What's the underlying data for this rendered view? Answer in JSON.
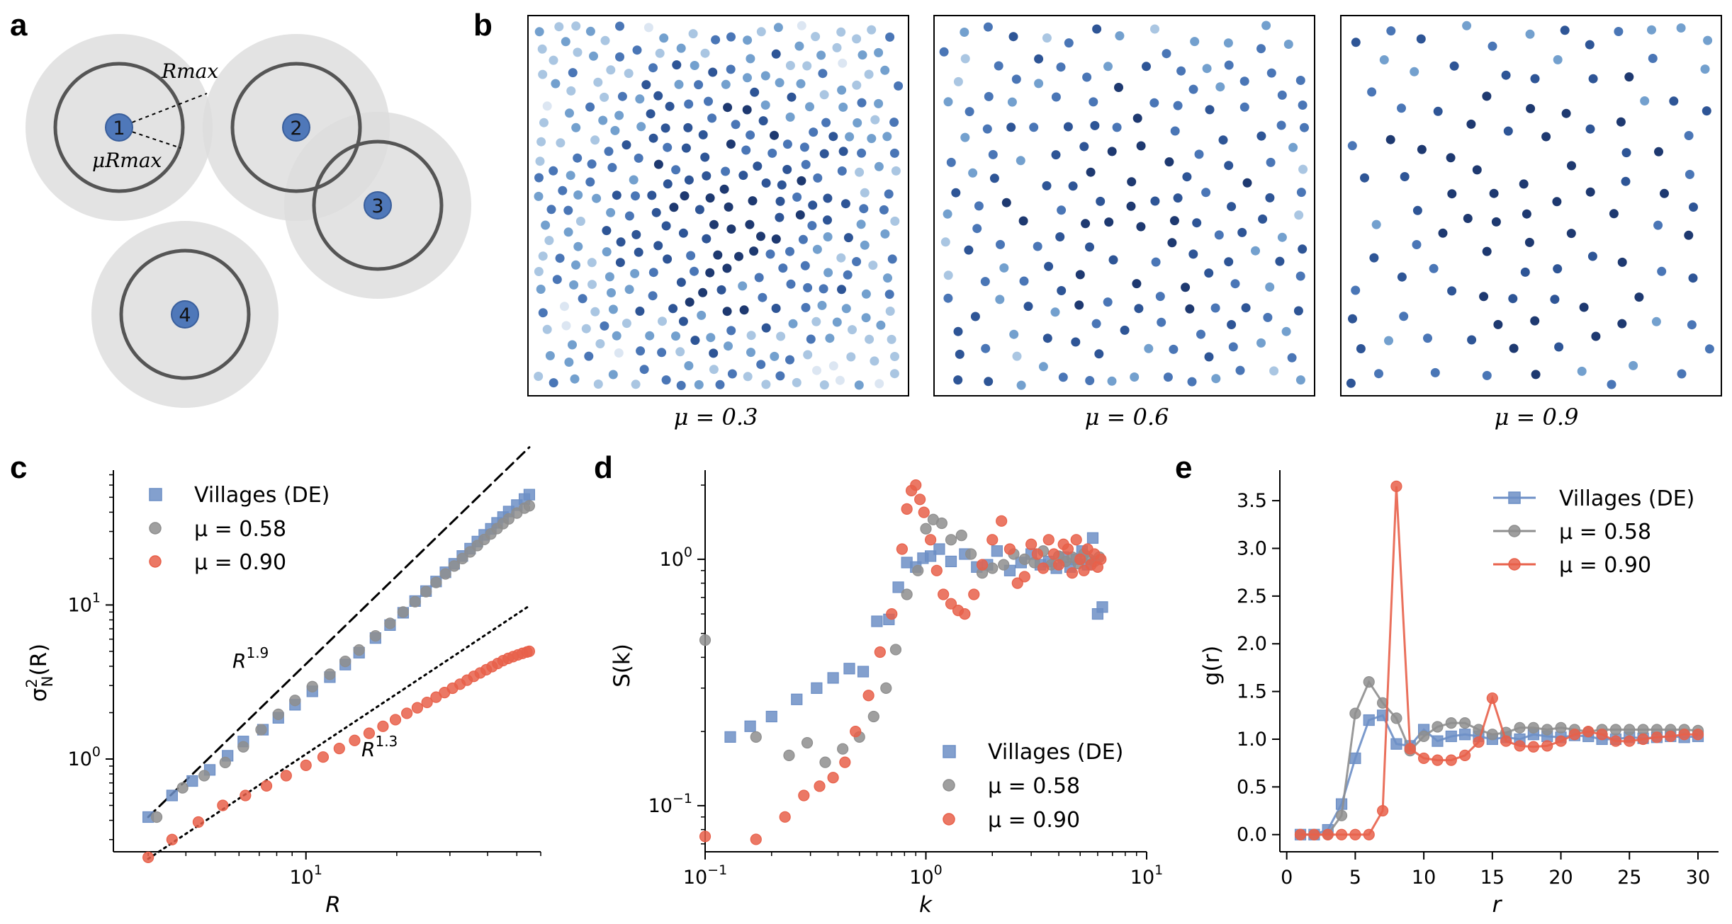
{
  "colors": {
    "villages": "#6d8fc6",
    "mu058": "#8e8e8e",
    "mu090": "#e8604a",
    "disc": "#4f78b9",
    "discEdge": "#3a5f9c",
    "ring": "#555555",
    "halo": "#dcdcdc"
  },
  "panel_letters": {
    "a": "a",
    "b": "b",
    "c": "c",
    "d": "d",
    "e": "e"
  },
  "panel_a": {
    "labels": {
      "rmax": "Rmax",
      "murmax": "μRmax"
    },
    "nodes": [
      {
        "label": "1"
      },
      {
        "label": "2"
      },
      {
        "label": "3"
      },
      {
        "label": "4"
      }
    ]
  },
  "panel_b": {
    "captions": [
      "μ = 0.3",
      "μ = 0.6",
      "μ = 0.9"
    ],
    "mu": [
      0.3,
      0.6,
      0.9
    ],
    "point_counts": [
      620,
      300,
      170
    ]
  },
  "chart_data": [
    {
      "panel": "c",
      "type": "scatter",
      "scale": "log-log",
      "xlabel": "R",
      "ylabel_base": "σ",
      "ylabel_sup": "2",
      "ylabel_sub": "N",
      "ylabel_arg": "(R)",
      "xlim": [
        2.3,
        60
      ],
      "ylim": [
        0.25,
        75
      ],
      "xticks": [
        {
          "v": 10,
          "base": "10",
          "exp": "1"
        }
      ],
      "yticks": [
        {
          "v": 1,
          "base": "10",
          "exp": "0"
        },
        {
          "v": 10,
          "base": "10",
          "exp": "1"
        }
      ],
      "fits": [
        {
          "name": "R^1.9",
          "base": "R",
          "exp": "1.9",
          "slope": 1.9,
          "anchor": [
            3,
            0.42
          ],
          "range": [
            3,
            55
          ],
          "style": "dashed"
        },
        {
          "name": "R^1.3",
          "base": "R",
          "exp": "1.3",
          "slope": 1.3,
          "anchor": [
            3,
            0.225
          ],
          "range": [
            3,
            55
          ],
          "style": "dotted"
        }
      ],
      "series": [
        {
          "name": "Villages (DE)",
          "marker": "square",
          "color_key": "villages",
          "x": [
            3,
            3.6,
            4.2,
            4.8,
            5.5,
            6.2,
            7.2,
            8.1,
            9.2,
            10.5,
            12,
            13.5,
            15,
            17,
            19,
            21,
            23,
            25,
            27,
            29,
            31,
            33,
            35,
            37,
            39,
            41,
            43,
            45,
            47,
            50,
            53,
            55
          ],
          "y": [
            0.42,
            0.58,
            0.72,
            0.85,
            1.05,
            1.3,
            1.55,
            1.85,
            2.25,
            2.75,
            3.4,
            4.1,
            4.9,
            6.1,
            7.4,
            8.9,
            10.6,
            12.3,
            14.2,
            16.3,
            18.5,
            20.8,
            23.2,
            25.8,
            28.5,
            31.2,
            34.1,
            37.2,
            40.4,
            44.5,
            48.7,
            52
          ]
        },
        {
          "name": "μ = 0.58",
          "marker": "circle",
          "color_key": "mu058",
          "x": [
            3.2,
            3.9,
            4.6,
            5.4,
            6.2,
            7.1,
            8.1,
            9.2,
            10.5,
            12,
            13.5,
            15,
            17,
            19,
            21,
            23,
            25,
            27,
            29,
            31,
            33,
            35,
            37,
            39,
            41,
            43,
            45,
            47,
            50,
            53,
            55
          ],
          "y": [
            0.42,
            0.65,
            0.78,
            0.95,
            1.2,
            1.55,
            1.95,
            2.4,
            2.95,
            3.55,
            4.3,
            5.1,
            6.3,
            7.6,
            9.0,
            10.5,
            12.2,
            14.0,
            15.9,
            17.9,
            20.0,
            22.1,
            24.3,
            26.6,
            28.9,
            31.3,
            33.7,
            36.2,
            39.5,
            42.5,
            44
          ]
        },
        {
          "name": "μ = 0.90",
          "marker": "circle",
          "color_key": "mu090",
          "x": [
            3,
            3.6,
            4.4,
            5.3,
            6.3,
            7.4,
            8.6,
            10,
            11.4,
            12.9,
            14.5,
            16.2,
            18,
            19.8,
            21.6,
            23.4,
            25.2,
            27,
            28.8,
            30.6,
            32.4,
            34.2,
            36,
            37.8,
            39.6,
            41.4,
            43.2,
            45,
            46.8,
            48.6,
            50.4,
            52.2,
            54,
            55
          ],
          "y": [
            0.23,
            0.3,
            0.39,
            0.5,
            0.58,
            0.67,
            0.78,
            0.91,
            1.03,
            1.17,
            1.32,
            1.47,
            1.63,
            1.8,
            1.98,
            2.15,
            2.33,
            2.52,
            2.7,
            2.88,
            3.06,
            3.25,
            3.44,
            3.62,
            3.8,
            3.98,
            4.17,
            4.35,
            4.5,
            4.62,
            4.74,
            4.85,
            4.95,
            5.0
          ]
        }
      ]
    },
    {
      "panel": "d",
      "type": "scatter",
      "scale": "log-log",
      "xlabel": "k",
      "ylabel": "S(k)",
      "xlim": [
        0.1,
        10
      ],
      "ylim": [
        0.065,
        2.3
      ],
      "xticks": [
        {
          "v": 0.1,
          "base": "10",
          "exp": "−1"
        },
        {
          "v": 1,
          "base": "10",
          "exp": "0"
        },
        {
          "v": 10,
          "base": "10",
          "exp": "1"
        }
      ],
      "yticks": [
        {
          "v": 0.1,
          "base": "10",
          "exp": "−1"
        },
        {
          "v": 1,
          "base": "10",
          "exp": "0"
        }
      ],
      "series": [
        {
          "name": "Villages (DE)",
          "marker": "square",
          "color_key": "villages",
          "x": [
            0.13,
            0.16,
            0.2,
            0.26,
            0.32,
            0.38,
            0.45,
            0.52,
            0.6,
            0.68,
            0.75,
            0.82,
            0.9,
            0.97,
            1.05,
            1.15,
            1.3,
            1.5,
            1.7,
            1.9,
            2.1,
            2.4,
            2.7,
            3,
            3.3,
            3.6,
            3.9,
            4.2,
            4.5,
            4.8,
            5.1,
            5.4,
            5.7,
            6,
            6.3
          ],
          "y": [
            0.19,
            0.21,
            0.23,
            0.27,
            0.3,
            0.33,
            0.36,
            0.35,
            0.56,
            0.57,
            0.77,
            0.97,
            0.93,
            1.01,
            1.03,
            1.1,
            0.98,
            1.05,
            0.93,
            0.95,
            1.08,
            0.9,
            0.97,
            1.05,
            0.95,
            0.98,
            0.92,
            1.02,
            0.93,
            1.0,
            1.08,
            0.95,
            1.22,
            0.6,
            0.64
          ]
        },
        {
          "name": "μ = 0.58",
          "marker": "circle",
          "color_key": "mu058",
          "x": [
            0.1,
            0.17,
            0.24,
            0.29,
            0.35,
            0.42,
            0.5,
            0.58,
            0.66,
            0.73,
            0.82,
            0.92,
            1.0,
            1.08,
            1.18,
            1.3,
            1.45,
            1.6,
            1.8,
            2.0,
            2.25,
            2.5,
            2.8,
            3.1,
            3.4,
            3.7,
            4.0,
            4.3,
            4.6,
            4.9,
            5.2,
            5.5,
            5.8,
            6.1
          ],
          "y": [
            0.47,
            0.19,
            0.16,
            0.18,
            0.15,
            0.17,
            0.19,
            0.23,
            0.3,
            0.43,
            0.72,
            0.9,
            1.33,
            1.45,
            1.4,
            1.2,
            1.25,
            1.05,
            0.88,
            0.92,
            0.95,
            1.05,
            1.0,
            0.97,
            1.08,
            0.95,
            1.03,
            0.98,
            1.02,
            0.96,
            1.05,
            1.0,
            0.98,
            1.02
          ]
        },
        {
          "name": "μ = 0.90",
          "marker": "circle",
          "color_key": "mu090",
          "x": [
            0.1,
            0.17,
            0.23,
            0.28,
            0.33,
            0.38,
            0.43,
            0.48,
            0.55,
            0.62,
            0.7,
            0.78,
            0.82,
            0.86,
            0.9,
            0.94,
            0.98,
            1.05,
            1.12,
            1.2,
            1.3,
            1.4,
            1.5,
            1.65,
            1.8,
            2.0,
            2.2,
            2.4,
            2.6,
            2.8,
            3.0,
            3.2,
            3.4,
            3.6,
            3.8,
            4.0,
            4.2,
            4.4,
            4.6,
            4.8,
            5.0,
            5.2,
            5.4,
            5.6,
            5.8,
            6.0,
            6.2
          ],
          "y": [
            0.075,
            0.073,
            0.09,
            0.11,
            0.12,
            0.13,
            0.15,
            0.2,
            0.28,
            0.42,
            0.6,
            1.1,
            1.6,
            1.9,
            2.0,
            1.75,
            1.55,
            1.2,
            0.9,
            0.72,
            0.66,
            0.62,
            0.6,
            0.72,
            0.95,
            1.2,
            1.43,
            1.1,
            0.8,
            0.85,
            1.15,
            1.05,
            0.92,
            1.2,
            1.05,
            0.95,
            1.15,
            1.1,
            0.88,
            1.2,
            1.0,
            0.9,
            1.1,
            0.95,
            1.05,
            0.93,
            1.0
          ]
        }
      ]
    },
    {
      "panel": "e",
      "type": "line",
      "scale": "linear",
      "xlabel": "r",
      "ylabel": "g(r)",
      "xlim": [
        -0.5,
        31.5
      ],
      "ylim": [
        -0.18,
        3.82
      ],
      "xticks": [
        {
          "v": 0,
          "label": "0"
        },
        {
          "v": 5,
          "label": "5"
        },
        {
          "v": 10,
          "label": "10"
        },
        {
          "v": 15,
          "label": "15"
        },
        {
          "v": 20,
          "label": "20"
        },
        {
          "v": 25,
          "label": "25"
        },
        {
          "v": 30,
          "label": "30"
        }
      ],
      "yticks": [
        {
          "v": 0,
          "label": "0.0"
        },
        {
          "v": 0.5,
          "label": "0.5"
        },
        {
          "v": 1.0,
          "label": "1.0"
        },
        {
          "v": 1.5,
          "label": "1.5"
        },
        {
          "v": 2.0,
          "label": "2.0"
        },
        {
          "v": 2.5,
          "label": "2.5"
        },
        {
          "v": 3.0,
          "label": "3.0"
        },
        {
          "v": 3.5,
          "label": "3.5"
        }
      ],
      "series": [
        {
          "name": "Villages (DE)",
          "marker": "square",
          "color_key": "villages",
          "x": [
            1,
            2,
            3,
            4,
            5,
            6,
            7,
            8,
            9,
            10,
            11,
            12,
            13,
            14,
            15,
            16,
            17,
            18,
            19,
            20,
            21,
            22,
            23,
            24,
            25,
            26,
            27,
            28,
            29,
            30
          ],
          "y": [
            0,
            0,
            0.05,
            0.32,
            0.8,
            1.2,
            1.25,
            0.95,
            0.93,
            1.1,
            0.98,
            1.03,
            1.05,
            1.03,
            1.0,
            1.02,
            1.0,
            1.05,
            1.03,
            1.02,
            1.04,
            1.03,
            1.0,
            1.0,
            1.02,
            1.01,
            1.02,
            1.03,
            1.02,
            1.03
          ]
        },
        {
          "name": "μ = 0.58",
          "marker": "circle",
          "color_key": "mu058",
          "x": [
            1,
            2,
            3,
            4,
            5,
            6,
            7,
            8,
            9,
            10,
            11,
            12,
            13,
            14,
            15,
            16,
            17,
            18,
            19,
            20,
            21,
            22,
            23,
            24,
            25,
            26,
            27,
            28,
            29,
            30
          ],
          "y": [
            0,
            0,
            0,
            0.2,
            1.27,
            1.6,
            1.38,
            1.22,
            0.88,
            1.03,
            1.13,
            1.17,
            1.17,
            1.1,
            1.05,
            1.07,
            1.12,
            1.12,
            1.1,
            1.12,
            1.1,
            1.08,
            1.1,
            1.1,
            1.1,
            1.1,
            1.1,
            1.1,
            1.1,
            1.09
          ]
        },
        {
          "name": "μ = 0.90",
          "marker": "circle",
          "color_key": "mu090",
          "x": [
            1,
            2,
            3,
            4,
            5,
            6,
            7,
            8,
            9,
            10,
            11,
            12,
            13,
            14,
            15,
            16,
            17,
            18,
            19,
            20,
            21,
            22,
            23,
            24,
            25,
            26,
            27,
            28,
            29,
            30
          ],
          "y": [
            0,
            0,
            0,
            0,
            0,
            0,
            0.25,
            3.65,
            0.9,
            0.8,
            0.78,
            0.78,
            0.83,
            0.97,
            1.43,
            0.98,
            0.93,
            0.92,
            0.93,
            0.98,
            1.05,
            1.08,
            1.05,
            0.98,
            0.98,
            1.0,
            1.02,
            1.03,
            1.05,
            1.05
          ]
        }
      ]
    }
  ]
}
